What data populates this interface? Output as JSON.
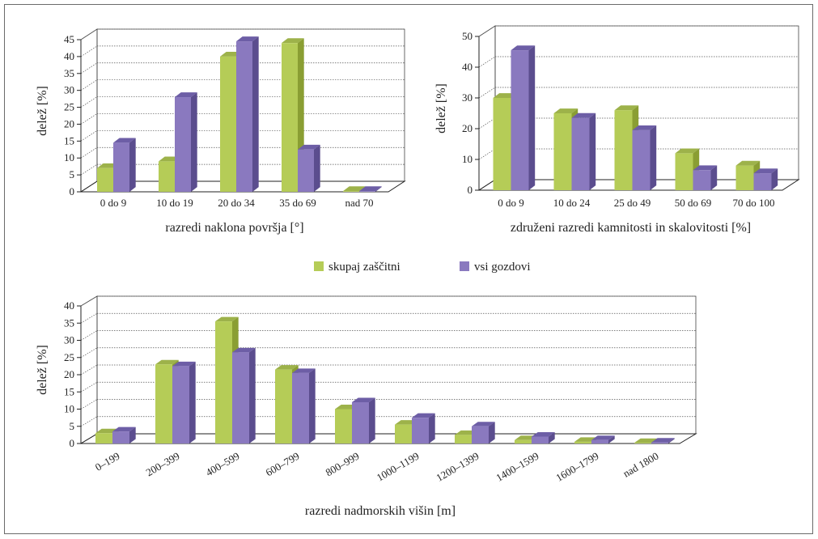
{
  "colors": {
    "skupaj_front": "#b5cc57",
    "skupaj_side": "#8a9e33",
    "skupaj_top": "#9db24a",
    "vsi_front": "#8a79bf",
    "vsi_side": "#5b4d8e",
    "vsi_top": "#6d5ea6",
    "grid": "#555555"
  },
  "legend": {
    "items": [
      {
        "label": "skupaj zaščitni"
      },
      {
        "label": "vsi gozdovi"
      }
    ]
  },
  "chart_data": [
    {
      "type": "bar",
      "xlabel": "razredi naklona površja [°]",
      "ylabel": "delež [%]",
      "ylim": [
        0,
        45
      ],
      "yticks": [
        0,
        5,
        10,
        15,
        20,
        25,
        30,
        35,
        40,
        45
      ],
      "categories": [
        "0 do 9",
        "10 do 19",
        "20 do 34",
        "35 do 69",
        "nad 70"
      ],
      "series": [
        {
          "name": "skupaj zaščitni",
          "values": [
            7,
            9,
            40,
            44,
            0.2
          ]
        },
        {
          "name": "vsi gozdovi",
          "values": [
            14.5,
            28,
            44.5,
            12.5,
            0.2
          ]
        }
      ]
    },
    {
      "type": "bar",
      "xlabel": "združeni razredi kamnitosti in skalovitosti [%]",
      "ylabel": "delež [%]",
      "ylim": [
        0,
        50
      ],
      "yticks": [
        0,
        10,
        20,
        30,
        40,
        50
      ],
      "categories": [
        "0 do 9",
        "10 do 24",
        "25 do 49",
        "50 do 69",
        "70 do 100"
      ],
      "series": [
        {
          "name": "skupaj zaščitni",
          "values": [
            30,
            25,
            26,
            12,
            8
          ]
        },
        {
          "name": "vsi gozdovi",
          "values": [
            45.5,
            23.5,
            19.5,
            6.5,
            5.5
          ]
        }
      ]
    },
    {
      "type": "bar",
      "xlabel": "razredi nadmorskih višin [m]",
      "ylabel": "delež [%]",
      "ylim": [
        0,
        40
      ],
      "yticks": [
        0,
        5,
        10,
        15,
        20,
        25,
        30,
        35,
        40
      ],
      "categories": [
        "0–199",
        "200–399",
        "400–599",
        "600–799",
        "800–999",
        "1000–1199",
        "1200–1399",
        "1400–1599",
        "1600–1799",
        "nad 1800"
      ],
      "series": [
        {
          "name": "skupaj zaščitni",
          "values": [
            3,
            23,
            35.5,
            21.5,
            10,
            5.5,
            2.5,
            1,
            0.5,
            0.2
          ]
        },
        {
          "name": "vsi gozdovi",
          "values": [
            3.5,
            22.5,
            26.5,
            20.5,
            12,
            7.5,
            5,
            2,
            1,
            0.3
          ]
        }
      ]
    }
  ]
}
